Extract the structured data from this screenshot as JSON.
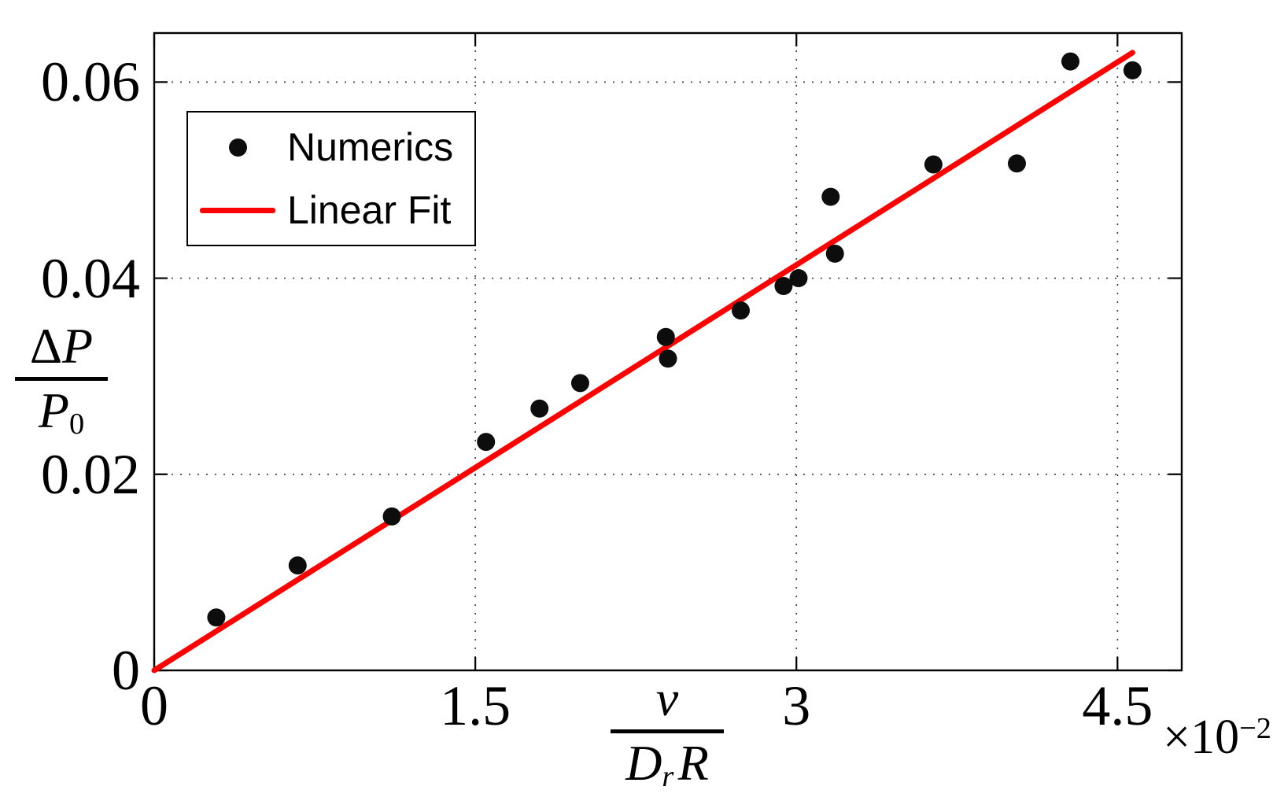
{
  "chart_data": {
    "type": "scatter",
    "title": "",
    "xlabel": {
      "num": "v",
      "den_base": "D",
      "den_sub": "r",
      "den_rest": "R"
    },
    "ylabel": {
      "num_prefix": "Δ",
      "num_var": "P",
      "den_base": "P",
      "den_sub": "0"
    },
    "x_multiplier": {
      "base": "×10",
      "exponent": "−2"
    },
    "xlim": [
      0,
      4.8
    ],
    "ylim": [
      0,
      0.065
    ],
    "x_units_note": "x axis values are in units of 10^-2",
    "grid": "dotted",
    "xticks": [
      {
        "value": 0,
        "label": "0"
      },
      {
        "value": 1.5,
        "label": "1.5"
      },
      {
        "value": 3,
        "label": "3"
      },
      {
        "value": 4.5,
        "label": "4.5"
      }
    ],
    "yticks": [
      {
        "value": 0,
        "label": "0"
      },
      {
        "value": 0.02,
        "label": "0.02"
      },
      {
        "value": 0.04,
        "label": "0.04"
      },
      {
        "value": 0.06,
        "label": "0.06"
      }
    ],
    "legend": {
      "position": "upper-left",
      "entries": [
        {
          "label": "Numerics",
          "marker": "dot",
          "color": "#0d0d0d"
        },
        {
          "label": "Linear Fit",
          "marker": "line",
          "color": "#ff0000"
        }
      ]
    },
    "series": [
      {
        "name": "Numerics",
        "kind": "scatter",
        "color": "#0d0d0d",
        "marker": "filled-circle",
        "points": [
          [
            0.29,
            0.0054
          ],
          [
            0.67,
            0.0107
          ],
          [
            1.11,
            0.0157
          ],
          [
            1.55,
            0.0233
          ],
          [
            1.8,
            0.0267
          ],
          [
            1.99,
            0.0293
          ],
          [
            2.39,
            0.034
          ],
          [
            2.4,
            0.0318
          ],
          [
            2.74,
            0.0367
          ],
          [
            2.94,
            0.0392
          ],
          [
            3.01,
            0.04
          ],
          [
            3.16,
            0.0483
          ],
          [
            3.18,
            0.0425
          ],
          [
            3.64,
            0.0516
          ],
          [
            4.03,
            0.0517
          ],
          [
            4.28,
            0.0621
          ],
          [
            4.57,
            0.0612
          ]
        ]
      },
      {
        "name": "Linear Fit",
        "kind": "line",
        "color": "#ff0000",
        "x_start": 0,
        "y_start": 0,
        "x_end": 4.57,
        "y_end": 0.063,
        "slope_per_x_unit": 0.0138
      }
    ]
  },
  "colors": {
    "background": "#ffffff",
    "axis": "#000000",
    "grid": "#3c3c3c",
    "marker": "#0d0d0d",
    "fit_line": "#ff0000"
  }
}
